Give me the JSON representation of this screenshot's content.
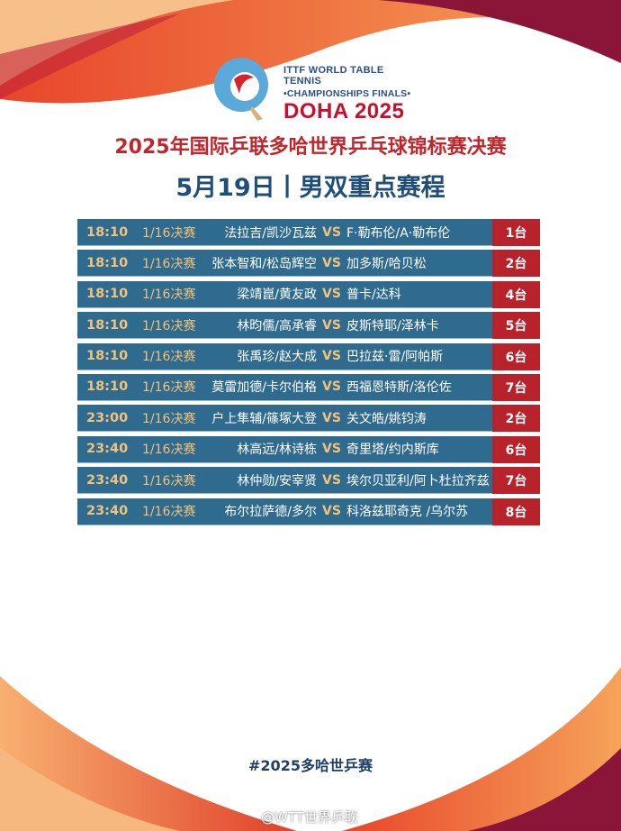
{
  "logo": {
    "line1": "ITTF WORLD TABLE TENNIS",
    "line2": "•CHAMPIONSHIPS FINALS•",
    "line3": "DOHA 2025"
  },
  "title": "2025年国际乒联多哈世界乒乓球锦标赛决赛",
  "subtitle": "5月19日丨男双重点赛程",
  "vs_label": "VS",
  "matches": [
    {
      "time": "18:10",
      "round": "1/16决赛",
      "team1": "法拉吉/凯沙瓦兹",
      "team2": "F·勒布伦/A·勒布伦",
      "table": "1台"
    },
    {
      "time": "18:10",
      "round": "1/16决赛",
      "team1": "张本智和/松岛辉空",
      "team2": "加多斯/哈贝松",
      "table": "2台"
    },
    {
      "time": "18:10",
      "round": "1/16决赛",
      "team1": "梁靖崑/黄友政",
      "team2": "普卡/达科",
      "table": "4台"
    },
    {
      "time": "18:10",
      "round": "1/16决赛",
      "team1": "林昀儒/高承睿",
      "team2": "皮斯特耶/泽林卡",
      "table": "5台"
    },
    {
      "time": "18:10",
      "round": "1/16决赛",
      "team1": "张禹珍/赵大成",
      "team2": "巴拉兹·雷/阿帕斯",
      "table": "6台"
    },
    {
      "time": "18:10",
      "round": "1/16决赛",
      "team1": "莫雷加德/卡尔伯格",
      "team2": "西福恩特斯/洛伦佐",
      "table": "7台"
    },
    {
      "time": "23:00",
      "round": "1/16决赛",
      "team1": "户上隼辅/篠塚大登",
      "team2": "关文皓/姚钧涛",
      "table": "2台"
    },
    {
      "time": "23:40",
      "round": "1/16决赛",
      "team1": "林高远/林诗栋",
      "team2": "奇里塔/约内斯库",
      "table": "6台"
    },
    {
      "time": "23:40",
      "round": "1/16决赛",
      "team1": "林仲勋/安宰贤",
      "team2": "埃尔贝亚利/阿卜杜拉齐兹",
      "table": "7台"
    },
    {
      "time": "23:40",
      "round": "1/16决赛",
      "team1": "布尔拉萨德/多尔",
      "team2": "科洛兹耶奇克 /乌尔苏",
      "table": "8台"
    }
  ],
  "hashtag": "#2025多哈世乒赛",
  "watermark": "@WTT世界乒联",
  "colors": {
    "title_red": "#c0272d",
    "subtitle_blue": "#1f4e79",
    "row_blue": "#2f6a8f",
    "table_red": "#b8222a",
    "accent_gold": "#f2c27a"
  }
}
